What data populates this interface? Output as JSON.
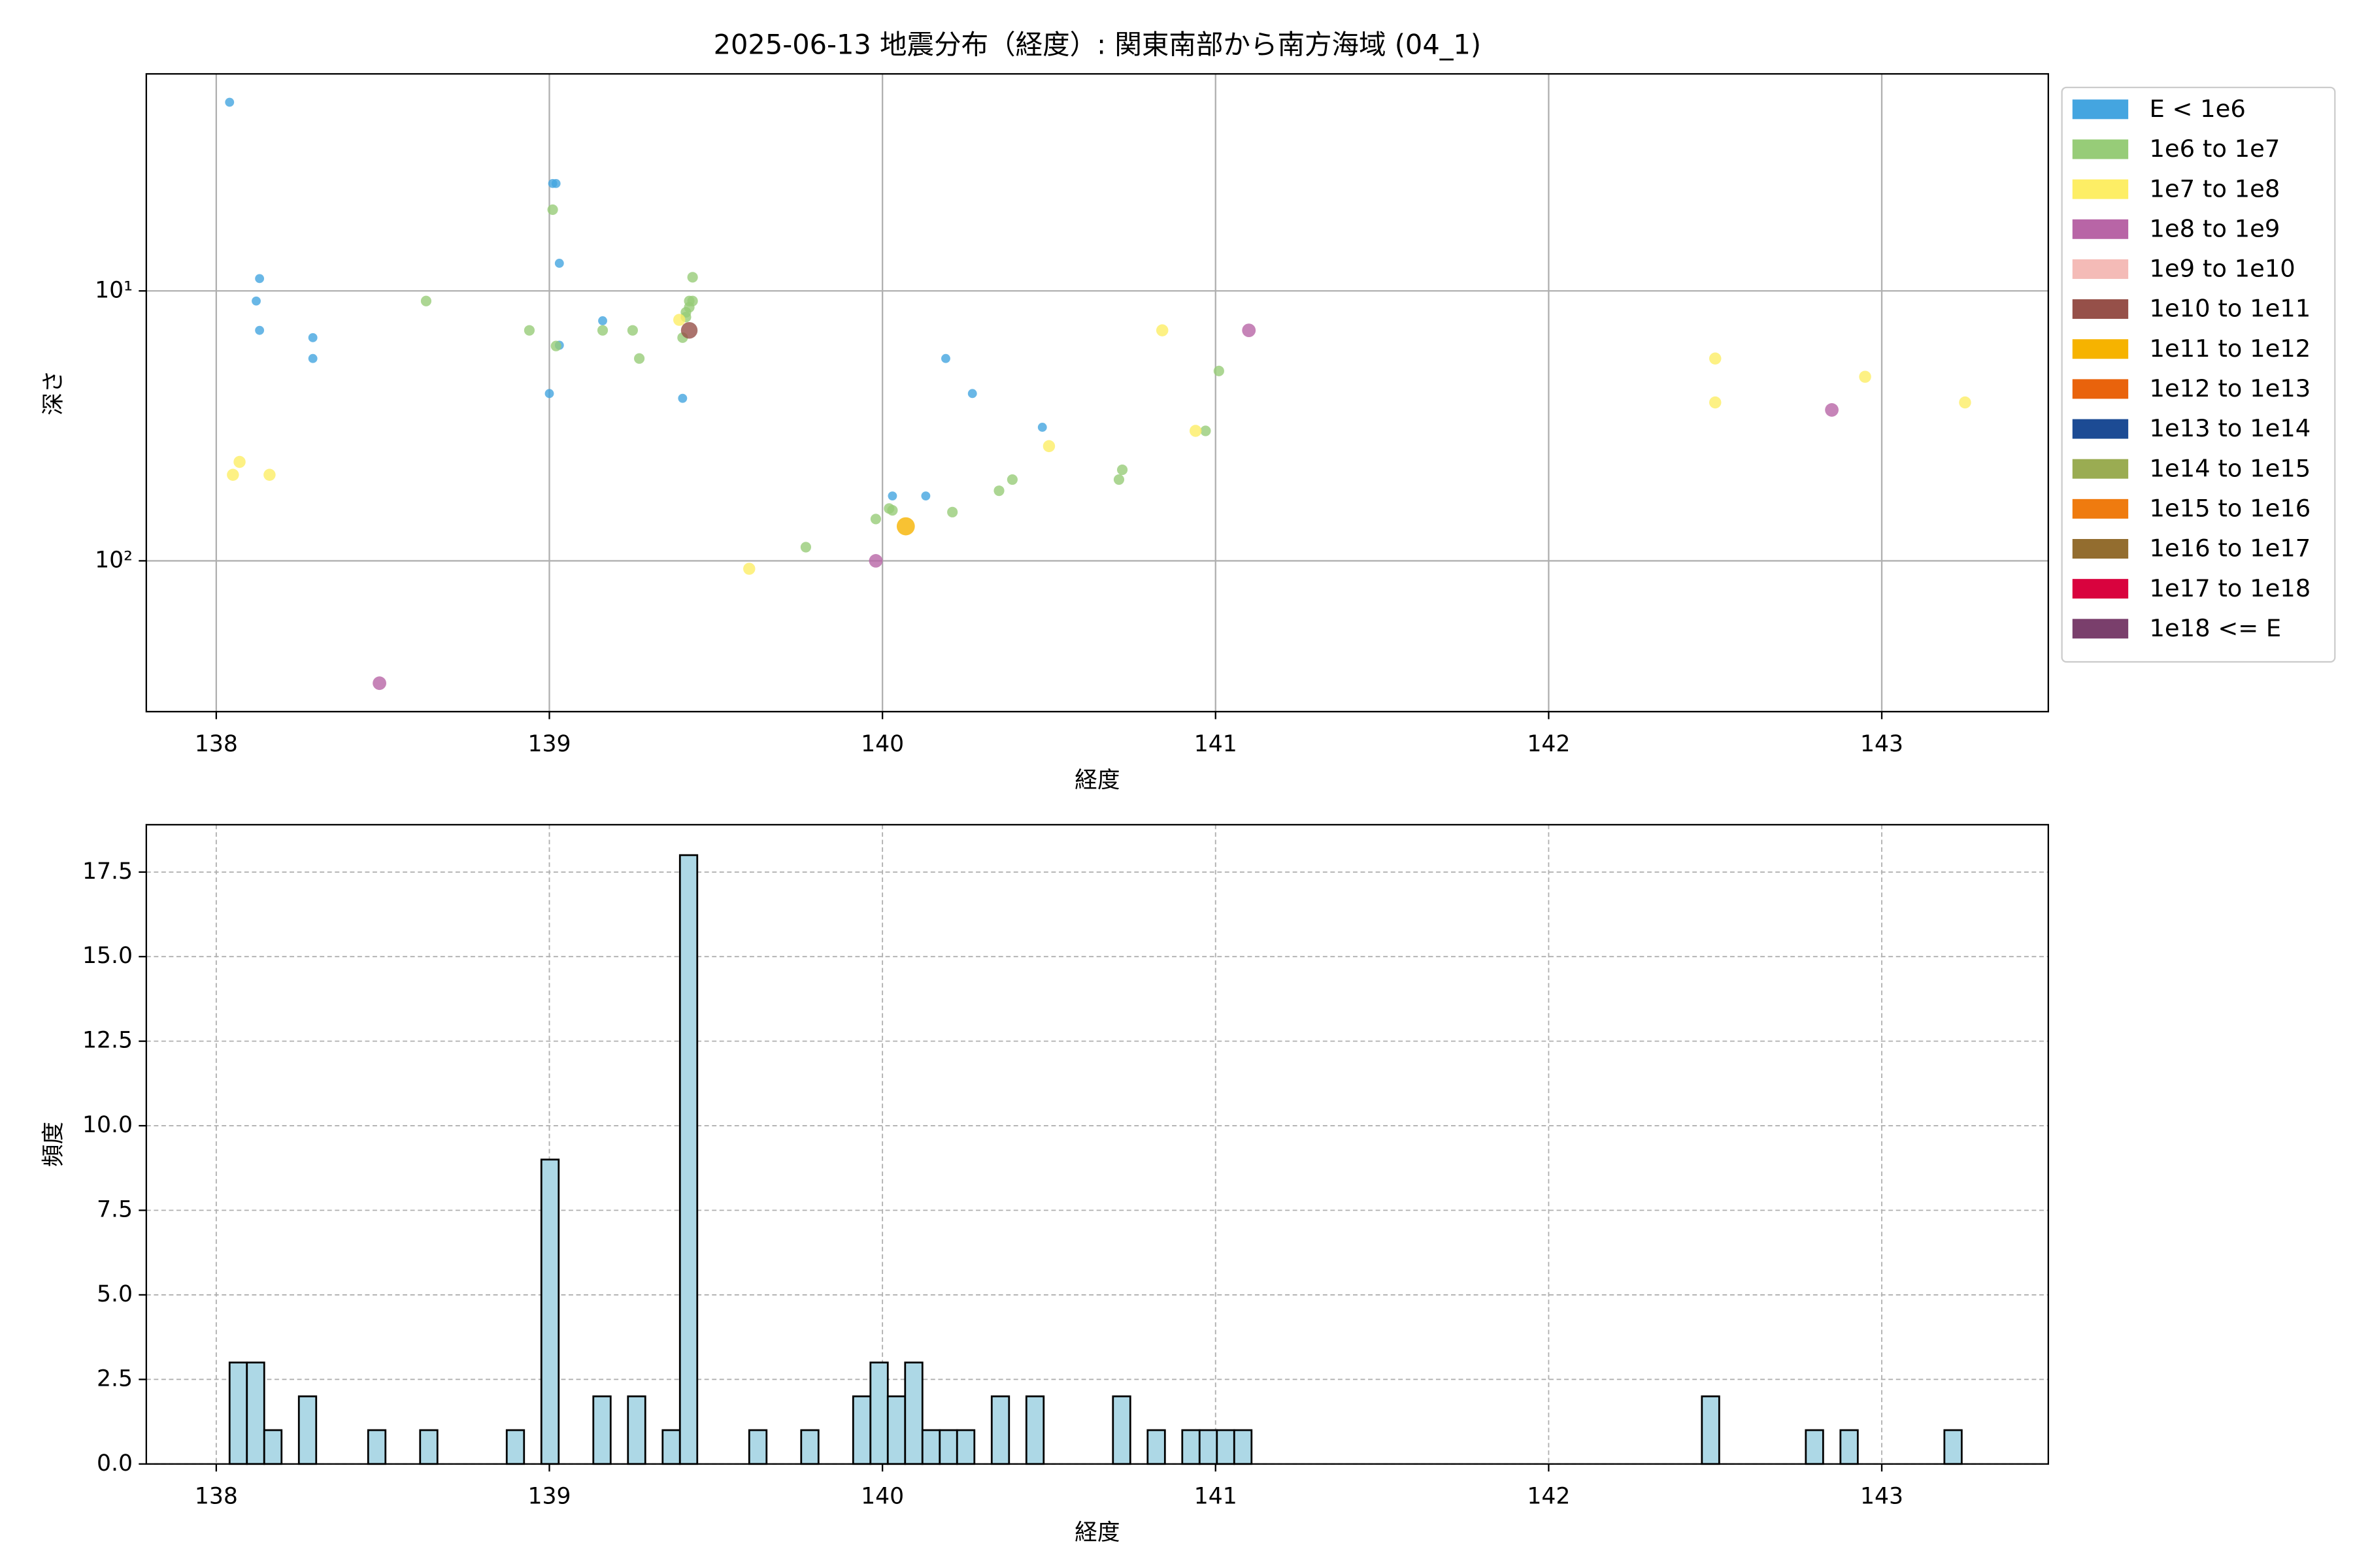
{
  "chart_data": [
    {
      "type": "scatter",
      "title": "2025-06-13 地震分布（経度）: 関東南部から南方海域 (04_1)",
      "xlabel": "経度",
      "ylabel": "深さ",
      "xlim": [
        137.79,
        143.5
      ],
      "xticks": [
        138,
        139,
        140,
        141,
        142,
        143
      ],
      "ylim": [
        1.57,
        362
      ],
      "yticks": [
        {
          "value": 10,
          "label": "10¹"
        },
        {
          "value": 100,
          "label": "10²"
        }
      ],
      "log_y": true,
      "y_inverted": true,
      "grid": true,
      "legend": "outside right",
      "series": [
        {
          "name": "E < 1e6",
          "color": "#44a5e0",
          "x": [
            138.04,
            139.02,
            139.01,
            138.13,
            138.12,
            138.13,
            138.29,
            138.29,
            139.03,
            139.16,
            139.03,
            139.0,
            139.4,
            140.19,
            140.27,
            140.48,
            140.03,
            140.13
          ],
          "y": [
            2.0,
            4.0,
            4.0,
            9.0,
            10.9,
            14,
            14.9,
            17.8,
            7.9,
            12.9,
            15.9,
            24,
            25,
            17.8,
            24,
            32,
            57.5,
            57.5
          ]
        },
        {
          "name": "1e6 to 1e7",
          "color": "#97cc78",
          "x": [
            139.01,
            139.43,
            138.63,
            139.42,
            139.41,
            139.43,
            139.42,
            139.41,
            138.94,
            139.25,
            139.16,
            139.4,
            139.02,
            139.27,
            141.01,
            140.97,
            140.72,
            140.71,
            140.39,
            140.35,
            140.02,
            140.03,
            139.98,
            140.21,
            139.77
          ],
          "y": [
            5.0,
            8.9,
            10.9,
            10.9,
            12,
            10.9,
            11.5,
            12.5,
            14,
            14,
            14,
            14.9,
            16,
            17.8,
            19.8,
            33,
            46,
            50,
            50,
            55,
            64,
            65,
            70,
            66,
            89
          ]
        },
        {
          "name": "1e7 to 1e8",
          "color": "#fdee65",
          "x": [
            138.07,
            138.05,
            138.16,
            139.39,
            140.84,
            142.5,
            142.5,
            142.95,
            143.25,
            140.94,
            140.5,
            139.6
          ],
          "y": [
            43,
            48,
            48,
            12.8,
            14,
            17.8,
            25.9,
            20.8,
            25.9,
            33,
            37.6,
            107
          ]
        },
        {
          "name": "1e8 to 1e9",
          "color": "#b865a6",
          "x": [
            138.49,
            139.98,
            141.1,
            142.85
          ],
          "y": [
            284,
            100,
            14,
            27.6
          ]
        },
        {
          "name": "1e9 to 1e10",
          "color": "#f4bbb7",
          "x": [],
          "y": []
        },
        {
          "name": "1e10 to 1e11",
          "color": "#965049",
          "x": [
            139.42
          ],
          "y": [
            14
          ]
        },
        {
          "name": "1e11 to 1e12",
          "color": "#f6b300",
          "x": [
            140.07
          ],
          "y": [
            74.5
          ]
        },
        {
          "name": "1e12 to 1e13",
          "color": "#e9630c",
          "x": [],
          "y": []
        },
        {
          "name": "1e13 to 1e14",
          "color": "#1c4b94",
          "x": [],
          "y": []
        },
        {
          "name": "1e14 to 1e15",
          "color": "#9aac52",
          "x": [],
          "y": []
        },
        {
          "name": "1e15 to 1e16",
          "color": "#ef7b0f",
          "x": [],
          "y": []
        },
        {
          "name": "1e16 to 1e17",
          "color": "#936d2f",
          "x": [],
          "y": []
        },
        {
          "name": "1e17 to 1e18",
          "color": "#d9033e",
          "x": [],
          "y": []
        },
        {
          "name": "1e18 <= E",
          "color": "#7a3f6c",
          "x": [],
          "y": []
        }
      ]
    },
    {
      "type": "histogram",
      "xlabel": "経度",
      "ylabel": "頻度",
      "color": "#add8e6",
      "edgecolor": "#000000",
      "xlim": [
        137.79,
        143.5
      ],
      "xticks": [
        138,
        139,
        140,
        141,
        142,
        143
      ],
      "ylim": [
        0,
        18.9
      ],
      "yticks": [
        {
          "value": 0,
          "label": "0.0"
        },
        2.5,
        {
          "value": 5,
          "label": "5.0"
        },
        7.5,
        {
          "value": 10,
          "label": "10.0"
        },
        12.5,
        {
          "value": 15,
          "label": "15.0"
        },
        17.5
      ],
      "grid": true,
      "bins": [
        138.04,
        138.092,
        138.144,
        138.196,
        138.248,
        138.3,
        138.352,
        138.404,
        138.456,
        138.508,
        138.56,
        138.612,
        138.664,
        138.716,
        138.768,
        138.82,
        138.872,
        138.924,
        138.976,
        139.028,
        139.08,
        139.132,
        139.184,
        139.236,
        139.288,
        139.34,
        139.392,
        139.444,
        139.496,
        139.548,
        139.6,
        139.652,
        139.704,
        139.756,
        139.808,
        139.86,
        139.912,
        139.964,
        140.016,
        140.068,
        140.12,
        140.172,
        140.224,
        140.276,
        140.328,
        140.38,
        140.432,
        140.484,
        140.536,
        140.588,
        140.64,
        140.692,
        140.744,
        140.796,
        140.848,
        140.9,
        140.952,
        141.004,
        141.056,
        141.108,
        141.16,
        141.212,
        141.264,
        141.316,
        141.368,
        141.42,
        141.472,
        141.524,
        141.576,
        141.628,
        141.68,
        141.732,
        141.784,
        141.836,
        141.888,
        141.94,
        141.992,
        142.044,
        142.096,
        142.148,
        142.2,
        142.252,
        142.304,
        142.356,
        142.408,
        142.46,
        142.512,
        142.564,
        142.616,
        142.668,
        142.72,
        142.772,
        142.824,
        142.876,
        142.928,
        142.98,
        143.032,
        143.084,
        143.136,
        143.188,
        143.24
      ],
      "values": [
        3,
        3,
        1,
        0,
        2,
        0,
        0,
        0,
        1,
        0,
        0,
        1,
        0,
        0,
        0,
        0,
        1,
        0,
        9,
        0,
        0,
        2,
        0,
        2,
        0,
        1,
        18,
        0,
        0,
        0,
        1,
        0,
        0,
        1,
        0,
        0,
        2,
        3,
        2,
        3,
        1,
        1,
        1,
        0,
        2,
        0,
        2,
        0,
        0,
        0,
        0,
        2,
        0,
        1,
        0,
        1,
        1,
        1,
        1,
        0,
        0,
        0,
        0,
        0,
        0,
        0,
        0,
        0,
        0,
        0,
        0,
        0,
        0,
        0,
        0,
        0,
        0,
        0,
        0,
        0,
        0,
        0,
        0,
        0,
        0,
        2,
        0,
        0,
        0,
        0,
        0,
        1,
        0,
        1,
        0,
        0,
        0,
        0,
        0,
        1
      ]
    }
  ]
}
